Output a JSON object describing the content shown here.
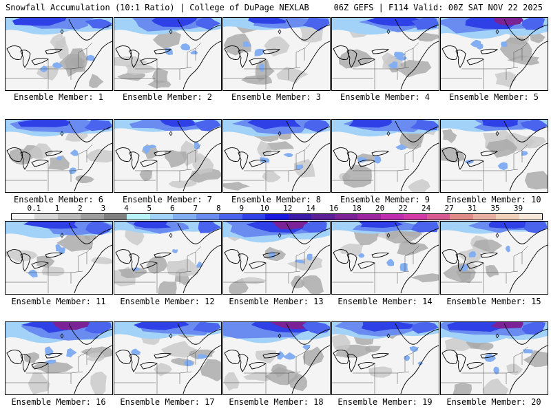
{
  "header": {
    "title_left": "Snowfall Accumulation (10:1 Ratio) | College of DuPage NEXLAB",
    "title_right": "06Z GEFS | F114 Valid: 00Z SAT NOV 22 2025"
  },
  "colorbar": {
    "labels": [
      "0.1",
      "1",
      "2",
      "3",
      "4",
      "5",
      "6",
      "7",
      "8",
      "9",
      "10",
      "12",
      "14",
      "16",
      "18",
      "20",
      "22",
      "24",
      "27",
      "31",
      "35",
      "39"
    ],
    "colors": [
      "#f4f4f4",
      "#d8d8d8",
      "#bcbcbc",
      "#9e9e9e",
      "#808080",
      "#b8f2f8",
      "#a2d2f8",
      "#84aef2",
      "#6a8cf0",
      "#4a64ee",
      "#2e40e6",
      "#1a18de",
      "#3a1aa6",
      "#5a1e96",
      "#7a2296",
      "#9c26a0",
      "#be2eae",
      "#d43aa4",
      "#d85a92",
      "#e08a8a",
      "#e8b0a4",
      "#f0d2bc",
      "#f8e8da"
    ]
  },
  "panels": [
    {
      "label": "Ensemble Member: 1",
      "snow": 2
    },
    {
      "label": "Ensemble Member: 2",
      "snow": 2
    },
    {
      "label": "Ensemble Member: 3",
      "snow": 1
    },
    {
      "label": "Ensemble Member: 4",
      "snow": 2
    },
    {
      "label": "Ensemble Member: 5",
      "snow": 3
    },
    {
      "label": "Ensemble Member: 6",
      "snow": 2
    },
    {
      "label": "Ensemble Member: 7",
      "snow": 1
    },
    {
      "label": "Ensemble Member: 8",
      "snow": 2
    },
    {
      "label": "Ensemble Member: 9",
      "snow": 2
    },
    {
      "label": "Ensemble Member: 10",
      "snow": 1
    },
    {
      "label": "Ensemble Member: 11",
      "snow": 2
    },
    {
      "label": "Ensemble Member: 12",
      "snow": 1
    },
    {
      "label": "Ensemble Member: 13",
      "snow": 3
    },
    {
      "label": "Ensemble Member: 14",
      "snow": 1
    },
    {
      "label": "Ensemble Member: 15",
      "snow": 1
    },
    {
      "label": "Ensemble Member: 16",
      "snow": 3
    },
    {
      "label": "Ensemble Member: 17",
      "snow": 2
    },
    {
      "label": "Ensemble Member: 18",
      "snow": 3
    },
    {
      "label": "Ensemble Member: 19",
      "snow": 2
    },
    {
      "label": "Ensemble Member: 20",
      "snow": 3
    }
  ]
}
